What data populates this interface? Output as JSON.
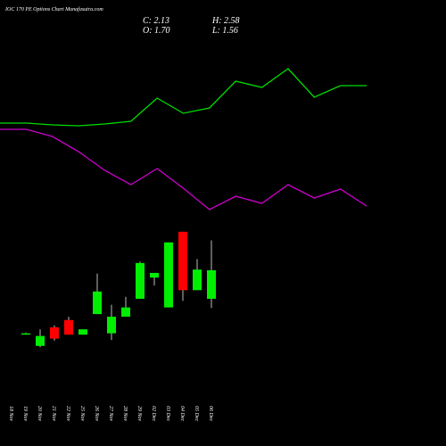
{
  "header": {
    "title": "IOC 170 PE Options Chart Munafasutra.com",
    "close": "C: 2.13",
    "open": "O: 1.70",
    "high": "H: 2.58",
    "low": "L: 1.56"
  },
  "chart_data": [
    {
      "type": "candlestick",
      "categories": [
        "18 Nov",
        "19 Nov",
        "20 Nov",
        "21 Nov",
        "22 Nov",
        "25 Nov",
        "26 Nov",
        "27 Nov",
        "28 Nov",
        "29 Nov",
        "02 Dec",
        "03 Dec",
        "04 Dec",
        "05 Dec",
        "06 Dec"
      ],
      "open": [
        null,
        1.18,
        0.99,
        1.27,
        1.38,
        1.16,
        1.47,
        1.18,
        1.43,
        1.7,
        2.02,
        1.57,
        2.71,
        1.83,
        1.7
      ],
      "high": [
        null,
        1.19,
        1.24,
        1.3,
        1.43,
        1.24,
        2.08,
        1.61,
        1.73,
        2.26,
        2.09,
        2.55,
        2.71,
        2.3,
        2.58
      ],
      "low": [
        null,
        1.17,
        0.97,
        1.07,
        1.16,
        1.16,
        1.47,
        1.08,
        1.43,
        1.7,
        1.9,
        1.57,
        1.67,
        1.83,
        1.56
      ],
      "close": [
        null,
        1.18,
        1.14,
        1.1,
        1.16,
        1.24,
        1.81,
        1.43,
        1.57,
        2.24,
        2.09,
        2.55,
        1.83,
        2.14,
        2.13
      ],
      "up_color": "#00ee00",
      "down_color": "#ff0000",
      "wick_color": "#bbbbbb",
      "ylim": [
        0.9,
        2.9
      ]
    },
    {
      "type": "line",
      "x": [
        0,
        1,
        2,
        3,
        4,
        5,
        6,
        7,
        8,
        9,
        10,
        11,
        12,
        13,
        14
      ],
      "xlim": [
        0,
        14
      ],
      "ylim": [
        0,
        2.5
      ],
      "series": [
        {
          "color": "#00dd00",
          "values": [
            1.12,
            1.12,
            1.1,
            1.09,
            1.11,
            1.14,
            1.4,
            1.23,
            1.29,
            1.59,
            1.52,
            1.73,
            1.41,
            1.54,
            1.54
          ]
        },
        {
          "color": "#cc00cc",
          "values": [
            1.05,
            1.05,
            0.97,
            0.8,
            0.59,
            0.43,
            0.61,
            0.39,
            0.15,
            0.3,
            0.22,
            0.43,
            0.28,
            0.38,
            0.19
          ]
        }
      ]
    }
  ]
}
